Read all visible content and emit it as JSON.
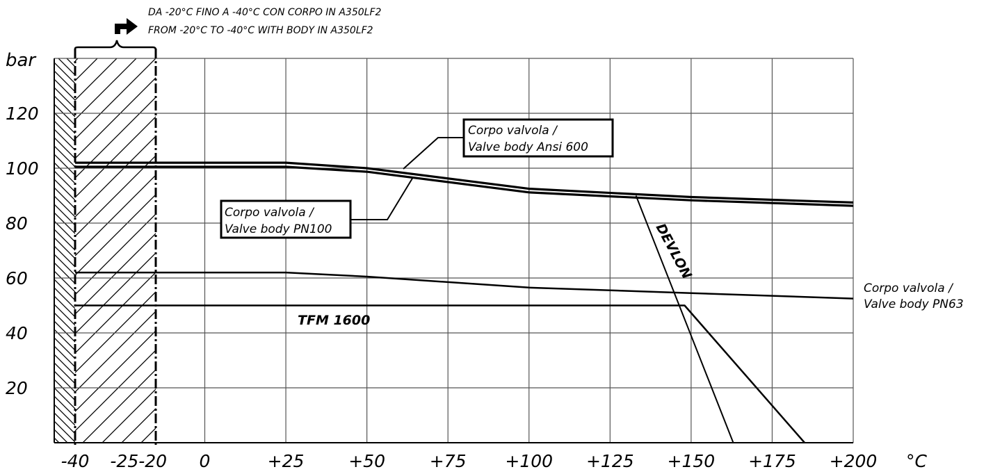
{
  "chart_data": {
    "type": "line",
    "ylabel": "bar",
    "xlabel": "°C",
    "x_ticks": [
      "-40",
      "-25",
      "-20",
      "0",
      "+25",
      "+50",
      "+75",
      "+100",
      "+125",
      "+150",
      "+175",
      "+200"
    ],
    "y_ticks": [
      "120",
      "100",
      "80",
      "60",
      "40",
      "20"
    ],
    "xlim": [
      -40,
      200
    ],
    "ylim": [
      0,
      140
    ],
    "grid": true,
    "header": {
      "line1": "DA -20°C FINO A -40°C CON CORPO IN A350LF2",
      "line2": "FROM -20°C TO -40°C WITH BODY IN A350LF2"
    },
    "series": [
      {
        "name": "Corpo valvola / Valve body Ansi 600",
        "x": [
          -40,
          25,
          50,
          100,
          150,
          200
        ],
        "y": [
          102,
          102,
          100,
          92.5,
          89.5,
          87.5
        ]
      },
      {
        "name": "Corpo valvola / Valve body PN100",
        "x": [
          -40,
          25,
          50,
          100,
          150,
          200
        ],
        "y": [
          100.5,
          100.5,
          98.7,
          91.2,
          88.3,
          86.3
        ]
      },
      {
        "name": "Corpo valvola / Valve body PN63",
        "x": [
          -40,
          25,
          50,
          100,
          150,
          200
        ],
        "y": [
          62,
          62,
          60.5,
          56.5,
          54.5,
          52.5
        ]
      },
      {
        "name": "TFM 1600",
        "x": [
          -40,
          148,
          185
        ],
        "y": [
          50,
          50,
          0
        ]
      },
      {
        "name": "DEVLON",
        "x": [
          133,
          163
        ],
        "y": [
          90,
          0
        ]
      }
    ],
    "annotations": {
      "ansi600": [
        "Corpo valvola /",
        "Valve body Ansi 600"
      ],
      "pn100": [
        "Corpo valvola /",
        "Valve body PN100"
      ],
      "pn63": [
        "Corpo valvola /",
        "Valve body PN63"
      ],
      "tfm": "TFM 1600",
      "devlon": "DEVLON"
    },
    "colors": {
      "line": "#000000",
      "grid": "#555555",
      "background": "#ffffff"
    }
  }
}
